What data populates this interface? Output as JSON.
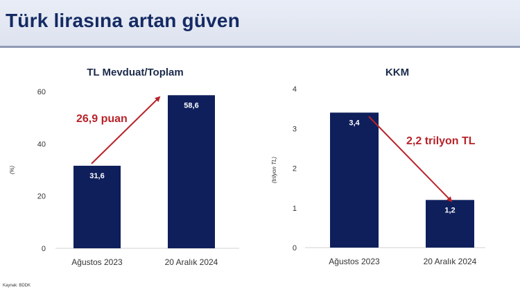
{
  "header": {
    "title": "Türk lirasına artan güven"
  },
  "source": "Kaynak: BDDK",
  "colors": {
    "bar": "#0f1f5c",
    "annotation": "#b8232a",
    "title": "#152a63"
  },
  "chart_data": [
    {
      "type": "bar",
      "title": "TL Mevduat/Toplam",
      "ylabel": "(%)",
      "categories": [
        "Ağustos 2023",
        "20 Aralık 2024"
      ],
      "values": [
        31.6,
        58.6
      ],
      "value_labels": [
        "31,6",
        "58,6"
      ],
      "ylim": [
        0,
        60
      ],
      "yticks": [
        0,
        20,
        40,
        60
      ],
      "ytick_labels": [
        "0",
        "20",
        "40",
        "60"
      ],
      "annotation": {
        "text": "26,9 puan",
        "arrow": "up"
      }
    },
    {
      "type": "bar",
      "title": "KKM",
      "ylabel": "(trilyon TL)",
      "categories": [
        "Ağustos 2023",
        "20 Aralık 2024"
      ],
      "values": [
        3.4,
        1.2
      ],
      "value_labels": [
        "3,4",
        "1,2"
      ],
      "ylim": [
        0,
        4
      ],
      "yticks": [
        0,
        1,
        2,
        3,
        4
      ],
      "ytick_labels": [
        "0",
        "1",
        "2",
        "3",
        "4"
      ],
      "annotation": {
        "text": "2,2 trilyon TL",
        "arrow": "down"
      }
    }
  ]
}
